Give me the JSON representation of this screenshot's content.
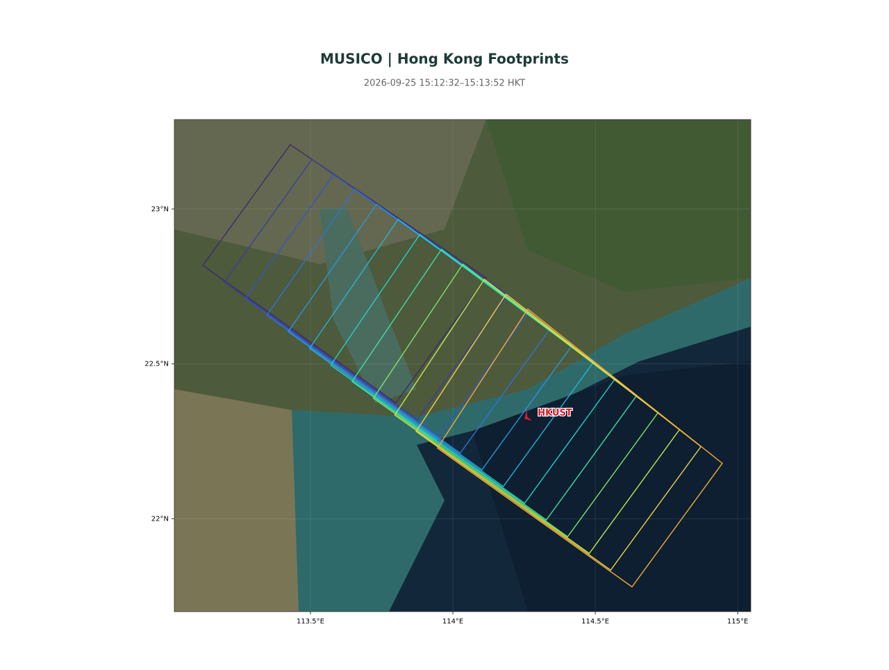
{
  "header": {
    "title": "MUSICO | Hong Kong Footprints",
    "subtitle": "2026-09-25 15:12:32–15:13:52 HKT"
  },
  "map": {
    "lon_range": [
      113.022,
      115.046
    ],
    "lat_range": [
      21.7,
      23.289
    ],
    "x_ticks": [
      {
        "value": 113.5,
        "label": "113.5°E"
      },
      {
        "value": 114,
        "label": "114°E"
      },
      {
        "value": 114.5,
        "label": "114.5°E"
      },
      {
        "value": 115,
        "label": "115°E"
      }
    ],
    "y_ticks": [
      {
        "value": 22,
        "label": "22°N"
      },
      {
        "value": 22.5,
        "label": "22.5°N"
      },
      {
        "value": 23,
        "label": "23°N"
      }
    ],
    "footprints": [
      {
        "color": "#3d2b6b",
        "corners": [
          [
            113.429,
            23.208
          ],
          [
            114.117,
            22.778
          ],
          [
            113.8,
            22.374
          ],
          [
            113.122,
            22.818
          ]
        ]
      },
      {
        "color": "#3b3f9a",
        "corners": [
          [
            113.505,
            23.16
          ],
          [
            114.192,
            22.724
          ],
          [
            113.875,
            22.32
          ],
          [
            113.197,
            22.764
          ]
        ]
      },
      {
        "color": "#3656c0",
        "corners": [
          [
            113.581,
            23.111
          ],
          [
            114.268,
            22.669
          ],
          [
            113.951,
            22.266
          ],
          [
            113.272,
            22.711
          ]
        ]
      },
      {
        "color": "#2f73d6",
        "corners": [
          [
            113.656,
            23.063
          ],
          [
            114.343,
            22.615
          ],
          [
            114.026,
            22.212
          ],
          [
            113.347,
            22.657
          ]
        ]
      },
      {
        "color": "#2a95dc",
        "corners": [
          [
            113.732,
            23.015
          ],
          [
            114.419,
            22.56
          ],
          [
            114.102,
            22.158
          ],
          [
            113.422,
            22.604
          ]
        ]
      },
      {
        "color": "#22b5d8",
        "corners": [
          [
            113.808,
            22.967
          ],
          [
            114.494,
            22.506
          ],
          [
            114.177,
            22.104
          ],
          [
            113.497,
            22.55
          ]
        ]
      },
      {
        "color": "#22d0c8",
        "corners": [
          [
            113.884,
            22.918
          ],
          [
            114.569,
            22.451
          ],
          [
            114.252,
            22.05
          ],
          [
            113.571,
            22.496
          ]
        ]
      },
      {
        "color": "#3ee0a0",
        "corners": [
          [
            113.96,
            22.87
          ],
          [
            114.645,
            22.397
          ],
          [
            114.328,
            21.996
          ],
          [
            113.646,
            22.443
          ]
        ]
      },
      {
        "color": "#7fe36a",
        "corners": [
          [
            114.035,
            22.822
          ],
          [
            114.72,
            22.342
          ],
          [
            114.403,
            21.942
          ],
          [
            113.721,
            22.389
          ]
        ]
      },
      {
        "color": "#c3e84c",
        "corners": [
          [
            114.111,
            22.773
          ],
          [
            114.796,
            22.288
          ],
          [
            114.479,
            21.888
          ],
          [
            113.796,
            22.335
          ]
        ]
      },
      {
        "color": "#eed24a",
        "corners": [
          [
            114.187,
            22.725
          ],
          [
            114.871,
            22.233
          ],
          [
            114.554,
            21.834
          ],
          [
            113.871,
            22.282
          ]
        ]
      },
      {
        "color": "#f3ab3a",
        "corners": [
          [
            114.263,
            22.677
          ],
          [
            114.946,
            22.179
          ],
          [
            114.629,
            21.78
          ],
          [
            113.946,
            22.228
          ]
        ]
      }
    ],
    "marker": {
      "label": "HKUST",
      "lon": 114.259,
      "lat": 22.336,
      "color": "#e0182d"
    }
  }
}
